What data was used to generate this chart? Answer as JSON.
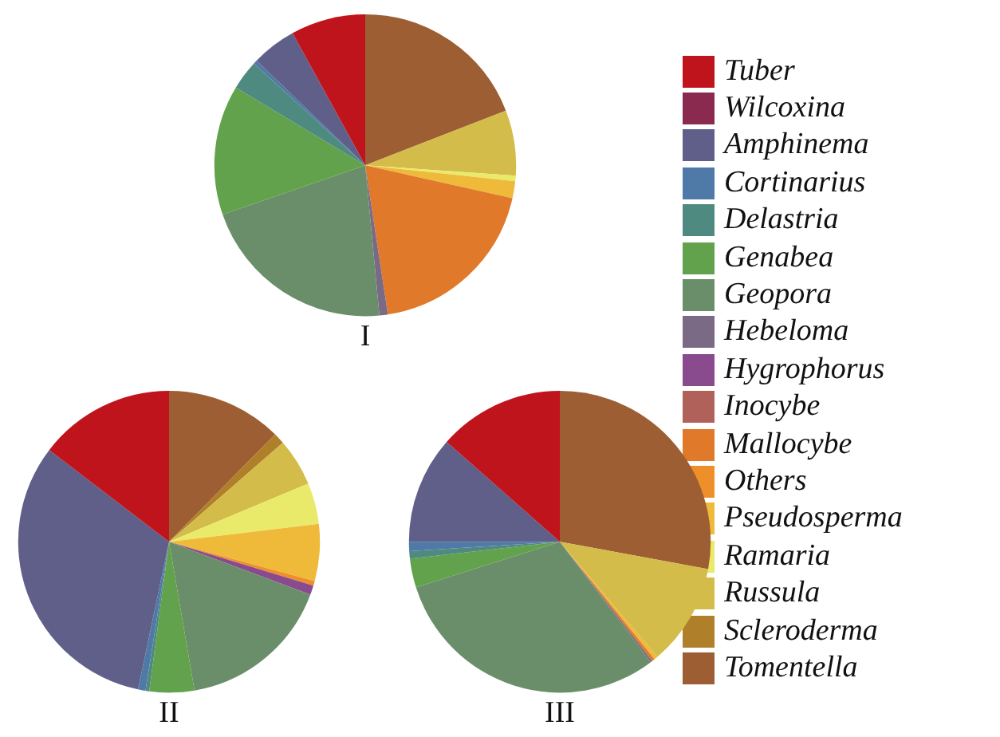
{
  "chart_data": [
    {
      "type": "pie",
      "title": "I",
      "legend": "right",
      "categories": [
        "Tuber",
        "Wilcoxina",
        "Amphinema",
        "Cortinarius",
        "Delastria",
        "Genabea",
        "Geopora",
        "Hebeloma",
        "Hygrophorus",
        "Inocybe",
        "Mallocybe",
        "Others",
        "Pseudosperma",
        "Ramaria",
        "Russula",
        "Scleroderma",
        "Tomentella"
      ],
      "values": [
        8,
        0,
        4.8,
        0.4,
        3.2,
        13.9,
        21.2,
        0.9,
        0,
        0,
        19.1,
        0,
        1.8,
        0.6,
        7,
        0,
        19.1
      ],
      "colors": [
        "#c0141c",
        "#8a2a4e",
        "#5f5f8a",
        "#4f7aa8",
        "#4f8a80",
        "#62a24c",
        "#6b8e6a",
        "#7a6a85",
        "#8a4a8e",
        "#b0625a",
        "#e07a2a",
        "#ef8f2a",
        "#efba3a",
        "#eaea6a",
        "#d4bc4a",
        "#b07f2a",
        "#9c5e32"
      ]
    },
    {
      "type": "pie",
      "title": "II",
      "categories": [
        null,
        null,
        null,
        null,
        null,
        null,
        null,
        null,
        null,
        null,
        null,
        null,
        null,
        null,
        null,
        null,
        null
      ],
      "values": [
        14.6,
        0,
        32.1,
        0.8,
        0.4,
        4.8,
        16.6,
        0,
        1,
        0,
        0,
        0.5,
        6.1,
        4.4,
        5.1,
        1.2,
        12.4
      ],
      "colors": [
        "#c0141c",
        "#8a2a4e",
        "#5f5f8a",
        "#4f7aa8",
        "#4f8a80",
        "#62a24c",
        "#6b8e6a",
        "#7a6a85",
        "#8a4a8e",
        "#b0625a",
        "#e07a2a",
        "#ef8f2a",
        "#efba3a",
        "#eaea6a",
        "#d4bc4a",
        "#b07f2a",
        "#9c5e32"
      ]
    },
    {
      "type": "pie",
      "title": "III",
      "categories": [
        null,
        null,
        null,
        null,
        null,
        null,
        null,
        null,
        null,
        null,
        null,
        null,
        null,
        null,
        null,
        null,
        null
      ],
      "values": [
        13.5,
        0,
        11.5,
        1,
        0.8,
        3.1,
        30.4,
        0.2,
        0,
        0,
        0.3,
        0,
        0.4,
        0,
        10.9,
        0,
        27.9
      ],
      "colors": [
        "#c0141c",
        "#8a2a4e",
        "#5f5f8a",
        "#4f7aa8",
        "#4f8a80",
        "#62a24c",
        "#6b8e6a",
        "#7a6a85",
        "#8a4a8e",
        "#b0625a",
        "#e07a2a",
        "#ef8f2a",
        "#efba3a",
        "#eaea6a",
        "#d4bc4a",
        "#b07f2a",
        "#9c5e32"
      ]
    }
  ]
}
